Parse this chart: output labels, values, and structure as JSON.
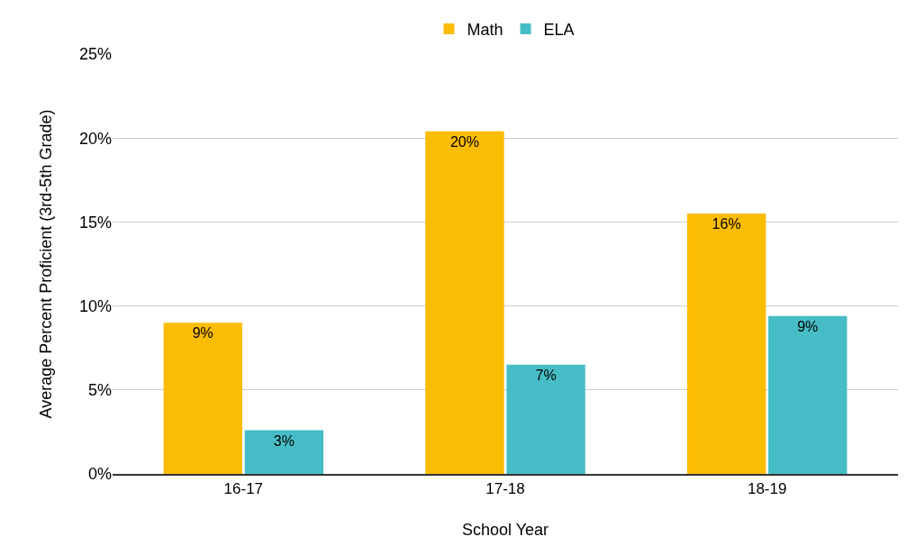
{
  "chart_data": {
    "type": "bar",
    "xlabel": "School Year",
    "ylabel": "Average Percent Proficient (3rd-5th Grade)",
    "categories": [
      "16-17",
      "17-18",
      "18-19"
    ],
    "series": [
      {
        "name": "Math",
        "color": "#fbbc04",
        "values": [
          9.0,
          20.4,
          15.5
        ],
        "value_labels": [
          "9%",
          "20%",
          "16%"
        ]
      },
      {
        "name": "ELA",
        "color": "#46bdc6",
        "values": [
          2.6,
          6.5,
          9.4
        ],
        "value_labels": [
          "3%",
          "7%",
          "9%"
        ]
      }
    ],
    "ylim": [
      0,
      25
    ],
    "yticks": [
      {
        "value": 0,
        "label": "0%"
      },
      {
        "value": 5,
        "label": "5%"
      },
      {
        "value": 10,
        "label": "10%"
      },
      {
        "value": 15,
        "label": "15%"
      },
      {
        "value": 20,
        "label": "20%"
      },
      {
        "value": 25,
        "label": "25%"
      }
    ],
    "grid": "y",
    "legend": "top"
  }
}
